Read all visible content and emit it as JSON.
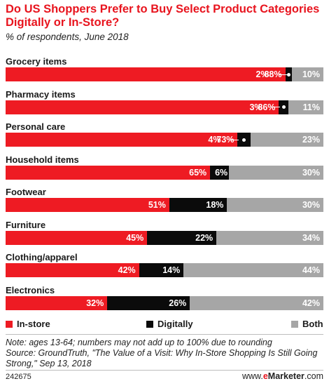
{
  "title": "Do US Shoppers Prefer to Buy Select Product Categories Digitally or In-Store?",
  "subtitle": "% of respondents, June 2018",
  "colors": {
    "in_store": "#ee1b23",
    "digitally": "#0b0b0b",
    "both": "#a6a6a6",
    "title": "#e8141e"
  },
  "chart_data": {
    "type": "bar",
    "orientation": "horizontal",
    "stacked": true,
    "title": "Do US Shoppers Prefer to Buy Select Product Categories Digitally or In-Store?",
    "subtitle": "% of respondents, June 2018",
    "categories": [
      "Grocery items",
      "Pharmacy items",
      "Personal care",
      "Household items",
      "Footwear",
      "Furniture",
      "Clothing/apparel",
      "Electronics"
    ],
    "series": [
      {
        "name": "In-store",
        "values": [
          88,
          86,
          73,
          65,
          51,
          45,
          42,
          32
        ],
        "labels": [
          "88%",
          "86%",
          "73%",
          "65%",
          "51%",
          "45%",
          "42%",
          "32%"
        ]
      },
      {
        "name": "Digitally",
        "values": [
          2,
          3,
          4,
          6,
          18,
          22,
          14,
          26
        ],
        "labels": [
          "2%",
          "3%",
          "4%",
          "6%",
          "18%",
          "22%",
          "14%",
          "26%"
        ]
      },
      {
        "name": "Both",
        "values": [
          10,
          11,
          23,
          30,
          30,
          34,
          44,
          42
        ],
        "labels": [
          "10%",
          "11%",
          "23%",
          "30%",
          "30%",
          "34%",
          "44%",
          "42%"
        ]
      }
    ],
    "legend": "bottom",
    "xlim": [
      0,
      100
    ]
  },
  "note": "Note: ages 13-64; numbers may not add up to 100% due to rounding",
  "source": "Source: GroundTruth, \"The Value of a Visit: Why In-Store Shopping Is Still Going Strong,\" Sep 13, 2018",
  "footer": {
    "chart_id": "242675",
    "brand_prefix": "www.",
    "brand_e": "e",
    "brand_name": "Marketer",
    "brand_suffix": ".com"
  }
}
